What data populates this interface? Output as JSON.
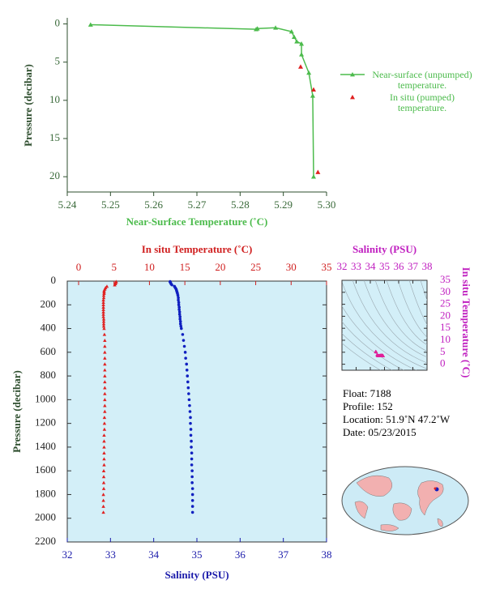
{
  "chart_data": [
    {
      "type": "line",
      "xlabel": "Near-Surface Temperature (˚C)",
      "ylabel": "Pressure (decibar)",
      "xlim": [
        5.24,
        5.3
      ],
      "xticks": [
        5.24,
        5.25,
        5.26,
        5.27,
        5.28,
        5.29,
        {
          "value": 5.3,
          "label": "5.30"
        }
      ],
      "ylim": [
        22,
        -0.8
      ],
      "yticks": [
        0,
        5,
        10,
        15,
        20
      ],
      "series": [
        {
          "name": "Near-surface (unpumped) temperature.",
          "color": "#4cbb4c",
          "line": true,
          "x": [
            5.2454,
            5.2837,
            5.284,
            5.2882,
            5.2919,
            5.2925,
            5.2931,
            5.2942,
            5.2942,
            5.2959,
            5.2968,
            5.297
          ],
          "y": [
            0.1,
            0.7,
            0.6,
            0.5,
            1.0,
            1.7,
            2.3,
            2.6,
            4.0,
            6.4,
            9.4,
            20.0
          ]
        },
        {
          "name": "In situ (pumped) temperature.",
          "color": "#e02020",
          "line": false,
          "x": [
            5.294,
            5.297,
            5.298
          ],
          "y": [
            5.6,
            8.6,
            19.4
          ]
        }
      ]
    },
    {
      "type": "scatter",
      "x2label": "In situ Temperature (˚C)",
      "xlabel": "Salinity (PSU)",
      "ylabel": "Pressure (decibar)",
      "x2lim": [
        -1.6,
        35
      ],
      "x2ticks": [
        0,
        5,
        10,
        15,
        20,
        25,
        30,
        35
      ],
      "xlim": [
        32,
        38
      ],
      "xticks": [
        32,
        33,
        34,
        35,
        36,
        37,
        38
      ],
      "ylim": [
        2200,
        0
      ],
      "yticks": [
        0,
        200,
        400,
        600,
        800,
        1000,
        1200,
        1400,
        1600,
        1800,
        2000,
        2200
      ],
      "pressure": [
        4,
        8,
        14,
        22,
        32,
        44,
        56,
        68,
        80,
        92,
        104,
        120,
        140,
        160,
        180,
        200,
        220,
        240,
        260,
        280,
        300,
        320,
        340,
        360,
        380,
        400,
        450,
        500,
        550,
        600,
        650,
        700,
        750,
        800,
        850,
        900,
        950,
        1000,
        1050,
        1100,
        1150,
        1200,
        1250,
        1300,
        1350,
        1400,
        1450,
        1500,
        1550,
        1600,
        1650,
        1700,
        1750,
        1800,
        1850,
        1900,
        1950
      ],
      "series": [
        {
          "axis": "x2",
          "color": "#e02020",
          "marker": "triangle",
          "values": [
            5.3,
            5.3,
            5.2,
            5.2,
            5.1,
            4.0,
            3.8,
            3.7,
            3.6,
            3.6,
            3.6,
            3.55,
            3.55,
            3.5,
            3.5,
            3.5,
            3.5,
            3.5,
            3.5,
            3.5,
            3.5,
            3.55,
            3.55,
            3.55,
            3.55,
            3.6,
            3.65,
            3.7,
            3.7,
            3.7,
            3.7,
            3.7,
            3.7,
            3.7,
            3.7,
            3.7,
            3.7,
            3.7,
            3.7,
            3.7,
            3.65,
            3.65,
            3.65,
            3.6,
            3.6,
            3.6,
            3.6,
            3.6,
            3.6,
            3.55,
            3.55,
            3.55,
            3.55,
            3.5,
            3.5,
            3.5,
            3.5
          ]
        },
        {
          "axis": "x",
          "color": "#1020c0",
          "marker": "circle",
          "values": [
            34.38,
            34.38,
            34.39,
            34.4,
            34.42,
            34.48,
            34.5,
            34.52,
            34.53,
            34.54,
            34.55,
            34.56,
            34.57,
            34.57,
            34.58,
            34.58,
            34.59,
            34.59,
            34.6,
            34.6,
            34.61,
            34.61,
            34.62,
            34.62,
            34.63,
            34.64,
            34.67,
            34.69,
            34.71,
            34.73,
            34.74,
            34.76,
            34.77,
            34.78,
            34.79,
            34.8,
            34.81,
            34.82,
            34.83,
            34.84,
            34.85,
            34.85,
            34.86,
            34.86,
            34.87,
            34.87,
            34.88,
            34.88,
            34.88,
            34.89,
            34.89,
            34.89,
            34.9,
            34.9,
            34.9,
            34.9,
            34.9
          ]
        }
      ]
    },
    {
      "type": "ts",
      "xlabel": "Salinity (PSU)",
      "ylabel": "In situ Temperature (˚C)",
      "xlim": [
        32,
        38
      ],
      "xticks": [
        32,
        33,
        34,
        35,
        36,
        37,
        38
      ],
      "ylim": [
        -2.5,
        35
      ],
      "yticks": [
        0,
        5,
        10,
        15,
        20,
        25,
        30,
        35
      ],
      "color": "#e0209a"
    }
  ],
  "info": [
    "Float:  7188",
    "Profile:  152",
    "Location:  51.9˚N  47.2˚W",
    "Date:  05/23/2015"
  ]
}
